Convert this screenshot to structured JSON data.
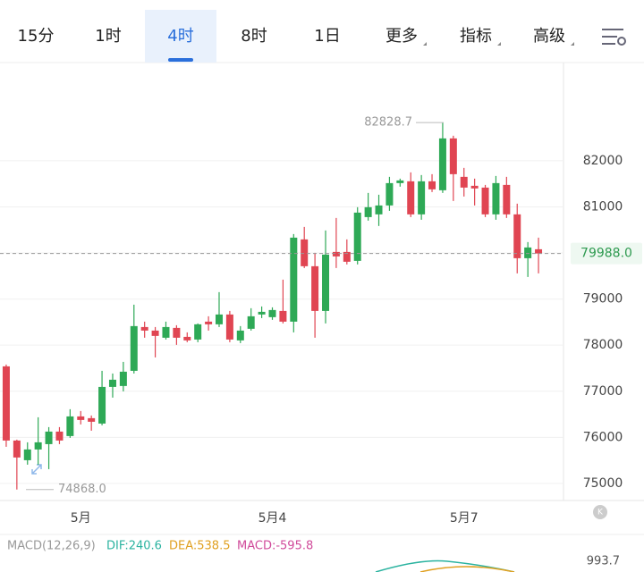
{
  "tabs": [
    {
      "label": "15分"
    },
    {
      "label": "1时"
    },
    {
      "label": "4时",
      "selected": true
    },
    {
      "label": "8时"
    },
    {
      "label": "1日"
    },
    {
      "label": "更多",
      "dropdown": true
    },
    {
      "label": "指标",
      "dropdown": true
    },
    {
      "label": "高级",
      "dropdown": true
    }
  ],
  "chart_data": {
    "type": "candlestick",
    "categories": [
      null,
      null,
      null,
      null,
      null,
      null,
      null,
      "5月",
      null,
      null,
      null,
      null,
      null,
      null,
      null,
      null,
      null,
      null,
      null,
      null,
      null,
      null,
      null,
      null,
      null,
      "5月4",
      null,
      null,
      null,
      null,
      null,
      null,
      null,
      null,
      null,
      null,
      null,
      null,
      null,
      null,
      null,
      null,
      null,
      "5月7",
      null,
      null,
      null,
      null,
      null,
      null,
      null
    ],
    "open": [
      77540,
      75931,
      75504,
      75737,
      75853,
      76125,
      76028,
      76454,
      76416,
      76299,
      77094,
      77114,
      77443,
      78393,
      78316,
      78161,
      78374,
      78180,
      78122,
      78510,
      78452,
      78665,
      78103,
      78355,
      78665,
      78607,
      78742,
      78510,
      80294,
      79712,
      78742,
      80022,
      80022,
      79828,
      80778,
      80837,
      81030,
      81515,
      81554,
      80837,
      81554,
      81360,
      82485,
      81651,
      81457,
      81418,
      80837,
      81476,
      80837,
      79886,
      80080
    ],
    "high": [
      77579,
      75950,
      75892,
      76435,
      76222,
      76222,
      76610,
      76571,
      76474,
      77443,
      77385,
      77637,
      78878,
      78510,
      78393,
      78510,
      78432,
      78277,
      78471,
      78626,
      79150,
      78742,
      78413,
      78801,
      78839,
      78820,
      79421,
      80410,
      80565,
      80003,
      80488,
      80759,
      80294,
      80992,
      81302,
      81263,
      81651,
      81612,
      81748,
      81690,
      81709,
      82828.7,
      82543,
      81845,
      81612,
      81476,
      81670,
      81651,
      81069,
      80236,
      80332
    ],
    "low": [
      75795,
      74868,
      75407,
      75407,
      75310,
      75853,
      75989,
      76280,
      76144,
      76261,
      76862,
      76997,
      77385,
      78161,
      77734,
      78122,
      78006,
      78064,
      78064,
      78316,
      78393,
      78064,
      78044,
      78316,
      78587,
      78549,
      78471,
      78277,
      79673,
      78161,
      78471,
      79673,
      79751,
      79751,
      80701,
      80585,
      80914,
      81438,
      80778,
      80720,
      81321,
      81302,
      81127,
      81224,
      81030,
      80778,
      80720,
      80759,
      79557,
      79479,
      79557
    ],
    "close": [
      75931,
      75563,
      75737,
      75892,
      76125,
      75931,
      76454,
      76377,
      76338,
      77094,
      77250,
      77424,
      78413,
      78316,
      78200,
      78393,
      78161,
      78103,
      78452,
      78452,
      78665,
      78122,
      78316,
      78626,
      78723,
      78762,
      78510,
      80332,
      79712,
      78742,
      79964,
      79925,
      79809,
      80875,
      80992,
      81030,
      81515,
      81573,
      80837,
      81554,
      81380,
      82485,
      81709,
      81418,
      81399,
      80837,
      81515,
      80837,
      79886,
      80119,
      79988
    ],
    "up_color": "#2ea956",
    "down_color": "#e04552",
    "ylim": [
      74630,
      84130
    ],
    "yticks": [
      75000,
      76000,
      77000,
      78000,
      79000,
      80000,
      81000,
      82000
    ],
    "grid": true,
    "high_label": 82828.7,
    "low_label": {
      "value": 74868,
      "label": "74868.0"
    },
    "last_price": {
      "value": 79988,
      "label": "79988.0"
    }
  },
  "macd": {
    "title": "MACD(12,26,9)",
    "dif": "DIF:240.6",
    "dea": "DEA:538.5",
    "macd": "MACD:-595.8",
    "scale_label": 993.7
  }
}
